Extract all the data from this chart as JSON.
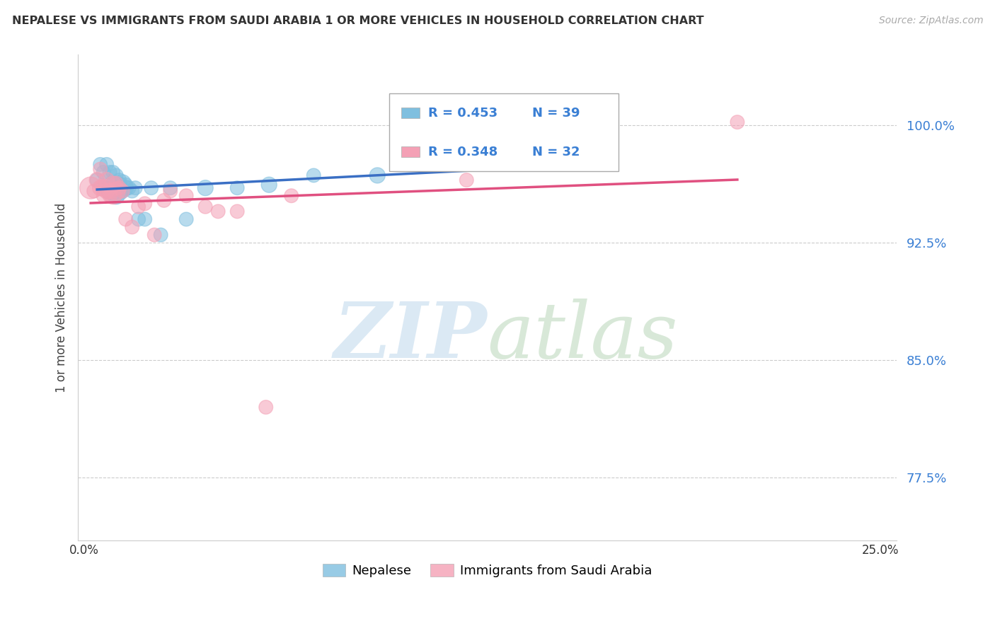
{
  "title": "NEPALESE VS IMMIGRANTS FROM SAUDI ARABIA 1 OR MORE VEHICLES IN HOUSEHOLD CORRELATION CHART",
  "source": "Source: ZipAtlas.com",
  "ylabel": "1 or more Vehicles in Household",
  "ytick_labels": [
    "77.5%",
    "85.0%",
    "92.5%",
    "100.0%"
  ],
  "ytick_values": [
    0.775,
    0.85,
    0.925,
    1.0
  ],
  "xlim": [
    -0.002,
    0.255
  ],
  "ylim": [
    0.735,
    1.045
  ],
  "legend_r1": "R = 0.453",
  "legend_n1": "N = 39",
  "legend_r2": "R = 0.348",
  "legend_n2": "N = 32",
  "legend_label1": "Nepalese",
  "legend_label2": "Immigrants from Saudi Arabia",
  "color_blue": "#7fbfdf",
  "color_pink": "#f4a0b5",
  "color_blue_line": "#3a6fc4",
  "color_pink_line": "#e05080",
  "nepalese_x": [
    0.004,
    0.005,
    0.006,
    0.006,
    0.007,
    0.007,
    0.008,
    0.008,
    0.008,
    0.009,
    0.009,
    0.009,
    0.01,
    0.01,
    0.01,
    0.01,
    0.011,
    0.011,
    0.011,
    0.012,
    0.012,
    0.013,
    0.013,
    0.014,
    0.015,
    0.016,
    0.017,
    0.019,
    0.021,
    0.024,
    0.027,
    0.032,
    0.038,
    0.048,
    0.058,
    0.072,
    0.092,
    0.115,
    0.135
  ],
  "nepalese_y": [
    0.965,
    0.975,
    0.96,
    0.97,
    0.975,
    0.96,
    0.958,
    0.962,
    0.97,
    0.958,
    0.962,
    0.97,
    0.955,
    0.96,
    0.962,
    0.968,
    0.958,
    0.962,
    0.965,
    0.958,
    0.963,
    0.96,
    0.962,
    0.96,
    0.958,
    0.96,
    0.94,
    0.94,
    0.96,
    0.93,
    0.96,
    0.94,
    0.96,
    0.96,
    0.962,
    0.968,
    0.968,
    0.978,
    0.98
  ],
  "saudi_x": [
    0.002,
    0.003,
    0.004,
    0.005,
    0.005,
    0.006,
    0.006,
    0.007,
    0.007,
    0.008,
    0.008,
    0.009,
    0.009,
    0.01,
    0.01,
    0.011,
    0.012,
    0.013,
    0.015,
    0.017,
    0.019,
    0.022,
    0.025,
    0.027,
    0.032,
    0.038,
    0.042,
    0.048,
    0.057,
    0.065,
    0.12,
    0.205
  ],
  "saudi_y": [
    0.96,
    0.958,
    0.965,
    0.96,
    0.972,
    0.96,
    0.955,
    0.958,
    0.965,
    0.955,
    0.958,
    0.955,
    0.962,
    0.958,
    0.963,
    0.96,
    0.958,
    0.94,
    0.935,
    0.948,
    0.95,
    0.93,
    0.952,
    0.958,
    0.955,
    0.948,
    0.945,
    0.945,
    0.82,
    0.955,
    0.965,
    1.002
  ],
  "nepalese_sizes": [
    200,
    200,
    200,
    200,
    200,
    200,
    300,
    200,
    200,
    350,
    250,
    200,
    300,
    250,
    200,
    200,
    350,
    250,
    200,
    200,
    300,
    250,
    200,
    200,
    200,
    200,
    200,
    200,
    200,
    200,
    200,
    200,
    250,
    200,
    250,
    200,
    250,
    200,
    200
  ],
  "saudi_sizes": [
    500,
    200,
    250,
    250,
    200,
    300,
    200,
    250,
    250,
    200,
    250,
    300,
    300,
    350,
    200,
    200,
    200,
    200,
    200,
    200,
    200,
    200,
    200,
    200,
    200,
    200,
    200,
    200,
    200,
    200,
    200,
    200
  ]
}
